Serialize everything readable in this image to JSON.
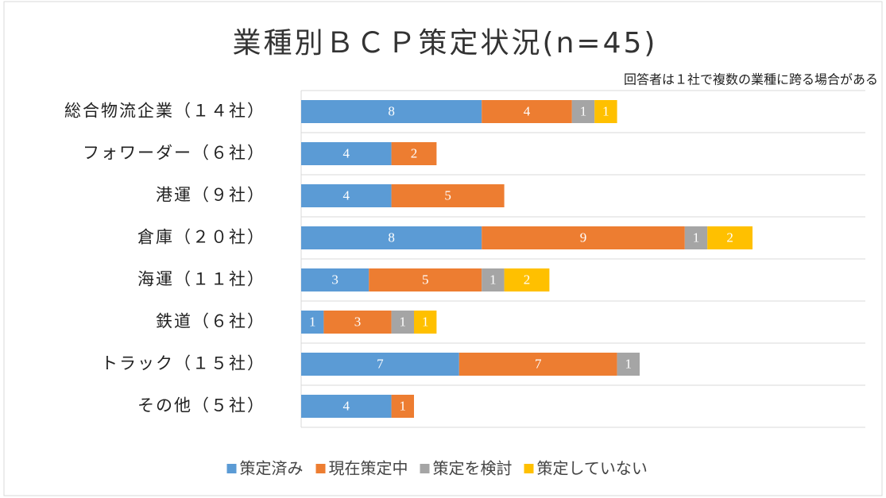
{
  "chart_data": {
    "type": "stacked-bar-horizontal",
    "title": "業種別ＢＣＰ策定状況(n=45)",
    "annotation": "回答者は１社で複数の業種に跨る場合がある",
    "categories": [
      "総合物流企業（１４社）",
      "フォワーダー（６社）",
      "港運（９社）",
      "倉庫（２０社）",
      "海運（１１社）",
      "鉄道（６社）",
      "トラック（１５社）",
      "その他（５社）"
    ],
    "series": [
      {
        "name": "策定済み",
        "color": "#5b9bd5",
        "values": [
          8,
          4,
          4,
          8,
          3,
          1,
          7,
          4
        ]
      },
      {
        "name": "現在策定中",
        "color": "#ed7d31",
        "values": [
          4,
          2,
          5,
          9,
          5,
          3,
          7,
          1
        ]
      },
      {
        "name": "策定を検討",
        "color": "#a5a5a5",
        "values": [
          1,
          null,
          null,
          1,
          1,
          1,
          1,
          null
        ]
      },
      {
        "name": "策定していない",
        "color": "#ffc000",
        "values": [
          1,
          null,
          null,
          2,
          2,
          1,
          null,
          null
        ]
      }
    ],
    "xlim": [
      0,
      25
    ],
    "legend": "bottom"
  }
}
